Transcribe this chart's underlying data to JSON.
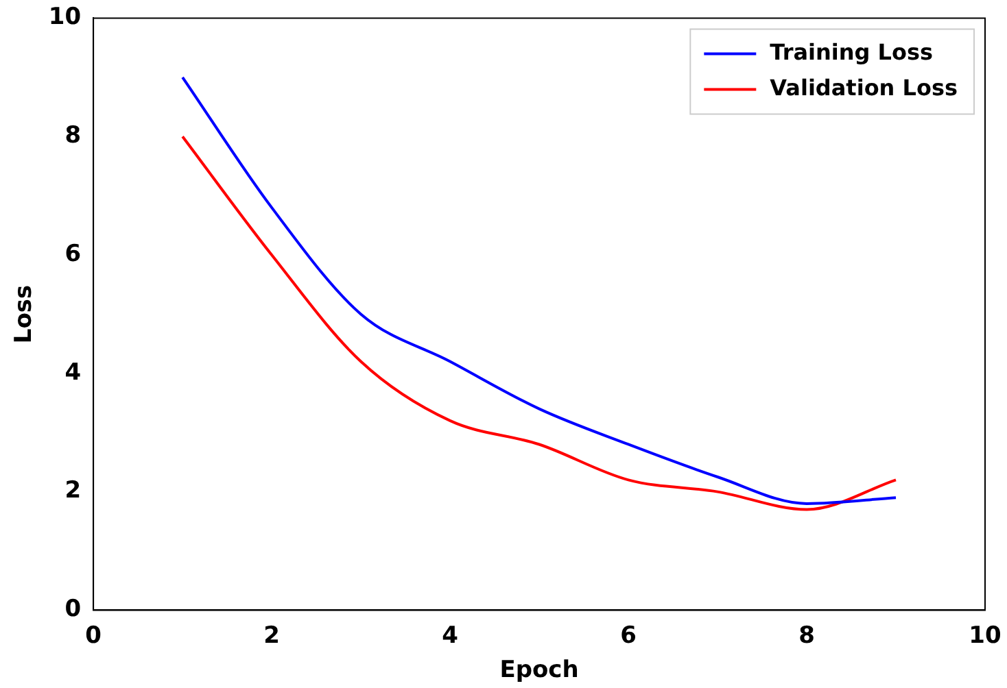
{
  "chart_data": {
    "type": "line",
    "xlabel": "Epoch",
    "ylabel": "Loss",
    "x": [
      1,
      2,
      3,
      4,
      5,
      6,
      7,
      8,
      9
    ],
    "series": [
      {
        "name": "Training Loss",
        "color": "#0000ff",
        "values": [
          9.0,
          6.8,
          5.0,
          4.2,
          3.4,
          2.8,
          2.25,
          1.8,
          1.9
        ]
      },
      {
        "name": "Validation Loss",
        "color": "#ff0000",
        "values": [
          8.0,
          6.0,
          4.2,
          3.2,
          2.8,
          2.2,
          2.0,
          1.7,
          2.2
        ]
      }
    ],
    "xlim": [
      0,
      10
    ],
    "xticks": [
      0,
      2,
      4,
      6,
      8,
      10
    ],
    "ylim": [
      0,
      10
    ],
    "yticks": [
      0,
      2,
      4,
      6,
      8,
      10
    ],
    "grid": false,
    "legend": "top right",
    "marker": "none",
    "line_style": "solid"
  }
}
